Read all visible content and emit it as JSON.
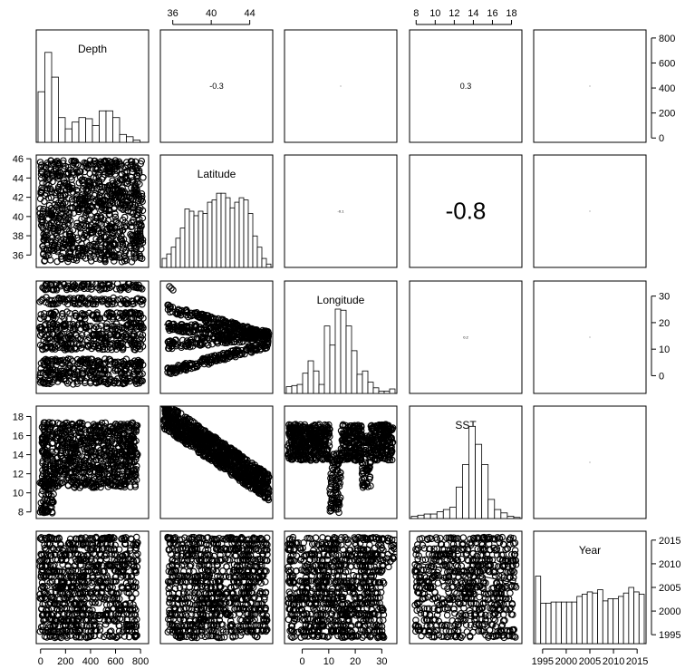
{
  "chart_data": {
    "type": "pairs-matrix",
    "variables": [
      "Depth",
      "Latitude",
      "Longitude",
      "SST",
      "Year"
    ],
    "correlations": [
      {
        "row": 0,
        "col": 1,
        "label": "-0.3",
        "size": "small"
      },
      {
        "row": 0,
        "col": 2,
        "label": "",
        "size": "tiny"
      },
      {
        "row": 0,
        "col": 3,
        "label": "0.3",
        "size": "small"
      },
      {
        "row": 0,
        "col": 4,
        "label": "",
        "size": "tiny"
      },
      {
        "row": 1,
        "col": 2,
        "label": "-0.1",
        "size": "tiny"
      },
      {
        "row": 1,
        "col": 3,
        "label": "-0.8",
        "size": "large"
      },
      {
        "row": 1,
        "col": 4,
        "label": "",
        "size": "tiny"
      },
      {
        "row": 2,
        "col": 3,
        "label": "0.2",
        "size": "tiny"
      },
      {
        "row": 2,
        "col": 4,
        "label": "",
        "size": "tiny"
      },
      {
        "row": 3,
        "col": 4,
        "label": "",
        "size": "tiny"
      }
    ],
    "axes": {
      "top": [
        {
          "col": 1,
          "ticks": [
            36,
            40,
            44
          ],
          "range": [
            34.9,
            46.2
          ]
        },
        {
          "col": 3,
          "ticks": [
            8,
            10,
            12,
            14,
            16,
            18
          ],
          "range": [
            7.5,
            18.9
          ]
        }
      ],
      "right": [
        {
          "row": 0,
          "ticks": [
            0,
            200,
            400,
            600,
            800
          ],
          "range": [
            -20,
            850
          ]
        },
        {
          "row": 2,
          "ticks": [
            0,
            10,
            20,
            30
          ],
          "range": [
            -6,
            35
          ]
        },
        {
          "row": 4,
          "ticks": [
            1995,
            2000,
            2005,
            2010,
            2015
          ],
          "range": [
            1993.5,
            2016.5
          ]
        }
      ],
      "left": [
        {
          "row": 1,
          "ticks": [
            36,
            38,
            40,
            42,
            44,
            46
          ],
          "range": [
            34.9,
            46.2
          ]
        },
        {
          "row": 3,
          "ticks": [
            8,
            10,
            12,
            14,
            16,
            18
          ],
          "range": [
            7.5,
            18.9
          ]
        }
      ],
      "bottom": [
        {
          "col": 0,
          "ticks": [
            0,
            200,
            400,
            600,
            800
          ],
          "range": [
            -20,
            850
          ]
        },
        {
          "col": 2,
          "ticks": [
            0,
            10,
            20,
            30
          ],
          "range": [
            -6,
            35
          ]
        },
        {
          "col": 4,
          "ticks": [
            1995,
            2000,
            2005,
            2010,
            2015
          ],
          "range": [
            1993.5,
            2016.5
          ]
        }
      ]
    },
    "histograms": [
      {
        "variable": "Depth",
        "bin_start": 0,
        "bin_width": 50,
        "relative_heights": [
          0.45,
          0.8,
          0.58,
          0.22,
          0.12,
          0.18,
          0.22,
          0.21,
          0.15,
          0.28,
          0.28,
          0.22,
          0.07,
          0.05,
          0.02,
          0.0
        ]
      },
      {
        "variable": "Latitude",
        "bin_start": 35,
        "bin_width": 0.5,
        "relative_heights": [
          0.08,
          0.12,
          0.18,
          0.26,
          0.35,
          0.52,
          0.5,
          0.46,
          0.5,
          0.48,
          0.58,
          0.6,
          0.66,
          0.66,
          0.62,
          0.53,
          0.58,
          0.62,
          0.6,
          0.48,
          0.28,
          0.18,
          0.08,
          0.03
        ]
      },
      {
        "variable": "Longitude",
        "bin_start": -5,
        "bin_width": 2,
        "relative_heights": [
          0.06,
          0.07,
          0.08,
          0.18,
          0.29,
          0.2,
          0.08,
          0.6,
          0.43,
          0.75,
          0.74,
          0.6,
          0.38,
          0.17,
          0.2,
          0.1,
          0.05,
          0.02,
          0.02,
          0.04
        ]
      },
      {
        "variable": "SST",
        "bin_start": 7.8,
        "bin_width": 0.6,
        "relative_heights": [
          0.02,
          0.03,
          0.04,
          0.04,
          0.06,
          0.08,
          0.1,
          0.28,
          0.48,
          0.82,
          0.66,
          0.48,
          0.17,
          0.08,
          0.05,
          0.02,
          0.01
        ]
      },
      {
        "variable": "Year",
        "bin_start": 1994,
        "bin_width": 1,
        "relative_heights": [
          0.6,
          0.36,
          0.36,
          0.37,
          0.37,
          0.37,
          0.37,
          0.37,
          0.42,
          0.44,
          0.46,
          0.45,
          0.48,
          0.38,
          0.4,
          0.4,
          0.42,
          0.45,
          0.5,
          0.46,
          0.44
        ]
      }
    ]
  }
}
